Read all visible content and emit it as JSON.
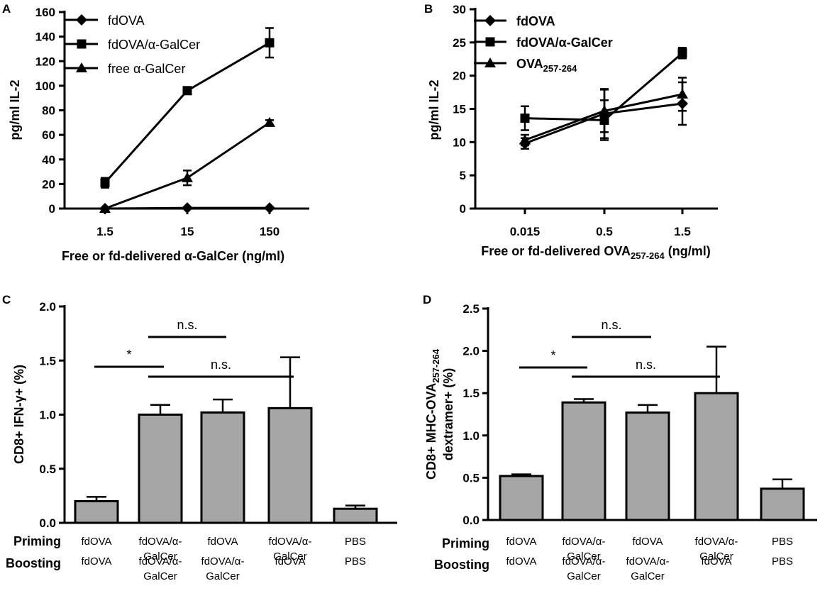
{
  "chart_data": [
    {
      "panel": "A",
      "type": "line",
      "categories": [
        "1.5",
        "15",
        "150"
      ],
      "xlabel": "Free or fd-delivered α-GalCer (ng/ml)",
      "ylabel": "pg/ml IL-2",
      "ylim": [
        0,
        160
      ],
      "yticks": [
        "0",
        "20",
        "40",
        "60",
        "80",
        "100",
        "120",
        "140",
        "160"
      ],
      "legend_position": "top-left",
      "series": [
        {
          "name": "fdOVA",
          "marker": "diamond",
          "values": [
            0,
            0.5,
            0.5
          ],
          "errors": [
            0,
            0,
            0
          ]
        },
        {
          "name": "fdOVA/α-GalCer",
          "marker": "square",
          "values": [
            21,
            96,
            135
          ],
          "errors": [
            4,
            2,
            12
          ]
        },
        {
          "name": "free α-GalCer",
          "marker": "triangle",
          "values": [
            0,
            25,
            70
          ],
          "errors": [
            0,
            6,
            2
          ]
        }
      ]
    },
    {
      "panel": "B",
      "type": "line",
      "categories": [
        "0.015",
        "0.5",
        "1.5"
      ],
      "xlabel": "Free or fd-delivered OVA",
      "xlabel_sub": "257-264",
      "xlabel_tail": " (ng/ml)",
      "ylabel": "pg/ml IL-2",
      "ylim": [
        0,
        30
      ],
      "yticks": [
        "0",
        "5",
        "10",
        "15",
        "20",
        "25",
        "30"
      ],
      "legend_position": "top-left",
      "series": [
        {
          "name": "fdOVA",
          "sub": "",
          "marker": "diamond",
          "values": [
            9.8,
            14.3,
            15.8
          ],
          "errors": [
            0.8,
            3.7,
            3.2
          ]
        },
        {
          "name": "fdOVA/α-GalCer",
          "sub": "",
          "marker": "square",
          "values": [
            13.6,
            13.3,
            23.4
          ],
          "errors": [
            1.8,
            3,
            0.8
          ]
        },
        {
          "name": "OVA",
          "sub": "257-264",
          "marker": "triangle",
          "values": [
            10.3,
            14.7,
            17.2
          ],
          "errors": [
            0.8,
            3.2,
            2.5
          ]
        }
      ]
    },
    {
      "panel": "C",
      "type": "bar",
      "ylabel": "CD8+ IFN-γ+ (%)",
      "ylim": [
        0,
        2.0
      ],
      "yticks": [
        "0.0",
        "0.5",
        "1.0",
        "1.5",
        "2.0"
      ],
      "row_labels": [
        "Priming",
        "Boosting"
      ],
      "groups": [
        {
          "priming": [
            "fdOVA"
          ],
          "boosting": [
            "fdOVA"
          ]
        },
        {
          "priming": [
            "fdOVA/α-",
            "GalCer"
          ],
          "boosting": [
            "fdOVA/α-",
            "GalCer"
          ]
        },
        {
          "priming": [
            "fdOVA"
          ],
          "boosting": [
            "fdOVA/α-",
            "GalCer"
          ]
        },
        {
          "priming": [
            "fdOVA/α-",
            "GalCer"
          ],
          "boosting": [
            "fdOVA"
          ]
        },
        {
          "priming": [
            "PBS"
          ],
          "boosting": [
            "PBS"
          ]
        }
      ],
      "values": [
        0.2,
        1.0,
        1.02,
        1.06,
        0.13
      ],
      "errors": [
        0.04,
        0.09,
        0.12,
        0.47,
        0.03
      ],
      "significance": [
        {
          "from": 0,
          "to": 1,
          "label": "*"
        },
        {
          "from": 1,
          "to": 2,
          "label": "n.s."
        },
        {
          "from": 1,
          "to": 3,
          "label": "n.s."
        }
      ]
    },
    {
      "panel": "D",
      "type": "bar",
      "ylabel_line1": "CD8+ MHC-OVA",
      "ylabel_sub": "257-264",
      "ylabel_line2": "dextramer+ (%)",
      "ylim": [
        0,
        2.5
      ],
      "yticks": [
        "0.0",
        "0.5",
        "1.0",
        "1.5",
        "2.0",
        "2.5"
      ],
      "row_labels": [
        "Priming",
        "Boosting"
      ],
      "groups": [
        {
          "priming": [
            "fdOVA"
          ],
          "boosting": [
            "fdOVA"
          ]
        },
        {
          "priming": [
            "fdOVA/α-",
            "GalCer"
          ],
          "boosting": [
            "fdOVA/α-",
            "GalCer"
          ]
        },
        {
          "priming": [
            "fdOVA"
          ],
          "boosting": [
            "fdOVA/α-",
            "GalCer"
          ]
        },
        {
          "priming": [
            "fdOVA/α-",
            "GalCer"
          ],
          "boosting": [
            "fdOVA"
          ]
        },
        {
          "priming": [
            "PBS"
          ],
          "boosting": [
            "PBS"
          ]
        }
      ],
      "values": [
        0.52,
        1.39,
        1.27,
        1.5,
        0.37
      ],
      "errors": [
        0.02,
        0.04,
        0.09,
        0.55,
        0.11
      ],
      "significance": [
        {
          "from": 0,
          "to": 1,
          "label": "*"
        },
        {
          "from": 1,
          "to": 2,
          "label": "n.s."
        },
        {
          "from": 1,
          "to": 3,
          "label": "n.s."
        }
      ]
    }
  ]
}
